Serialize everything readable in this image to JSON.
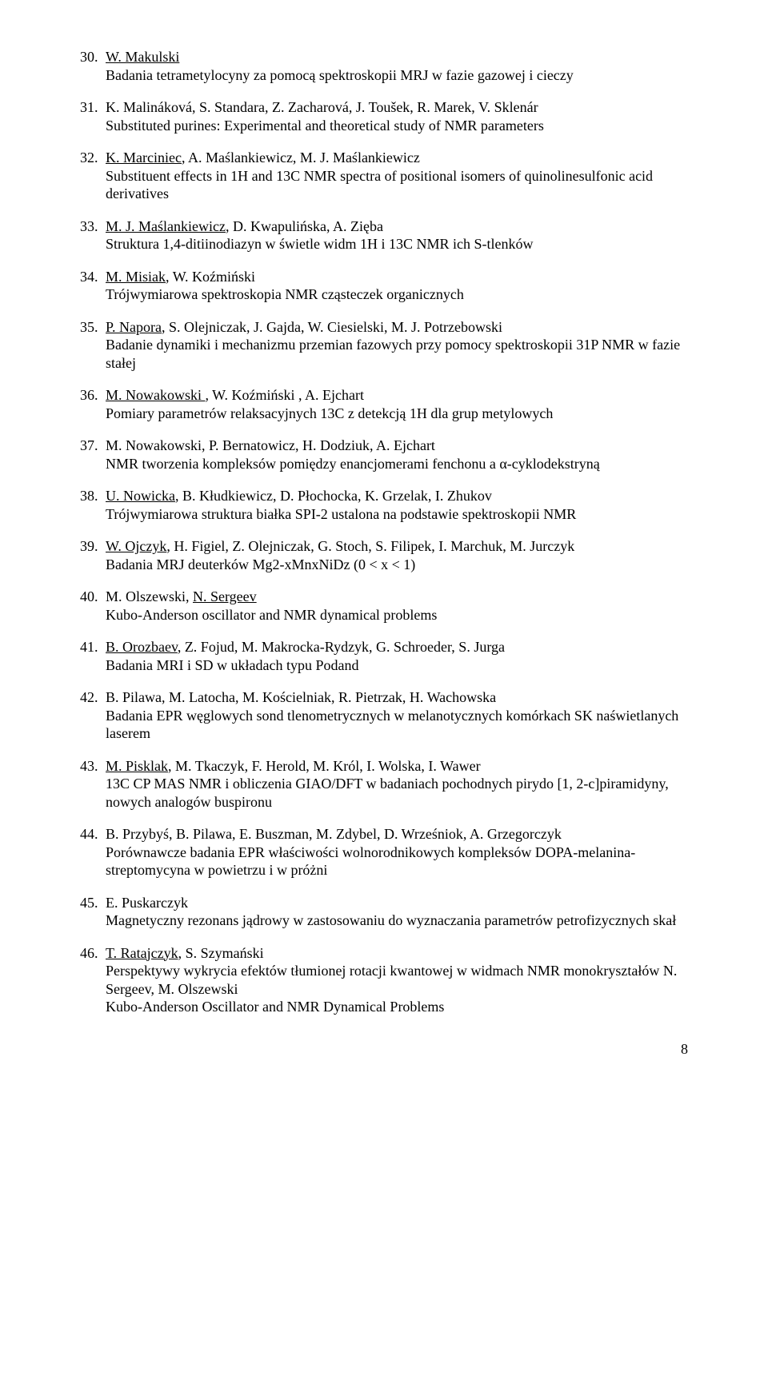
{
  "entries": [
    {
      "num": "30.",
      "authors_html": "<span class='u'>W. Makulski</span>",
      "title_lines": [
        "Badania tetrametylocyny za pomocą spektroskopii MRJ w fazie gazowej i cieczy"
      ]
    },
    {
      "num": "31.",
      "authors_html": "K. Malináková, S. Standara, Z. Zacharová, J. Toušek, R. Marek, V. Sklenár",
      "title_lines": [
        "Substituted purines: Experimental and theoretical study of NMR parameters"
      ]
    },
    {
      "num": "32.",
      "authors_html": "<span class='u'>K. Marciniec</span>, A. Maślankiewicz, M. J. Maślankiewicz",
      "title_lines": [
        "Substituent effects in 1H and 13C NMR spectra of positional isomers of quinolinesulfonic acid derivatives"
      ]
    },
    {
      "num": "33.",
      "authors_html": "<span class='u'>M. J. Maślankiewicz</span>, D. Kwapulińska, A. Zięba",
      "title_lines": [
        "Struktura 1,4-ditiinodiazyn w świetle widm 1H i 13C NMR ich S-tlenków"
      ]
    },
    {
      "num": "34.",
      "authors_html": "<span class='u'>M. Misiak</span>, W. Koźmiński",
      "title_lines": [
        "Trójwymiarowa spektroskopia NMR cząsteczek organicznych"
      ]
    },
    {
      "num": "35.",
      "authors_html": "<span class='u'>P. Napora</span>, S. Olejniczak, J. Gajda, W. Ciesielski, M. J. Potrzebowski",
      "title_lines": [
        "Badanie dynamiki i mechanizmu przemian fazowych przy pomocy spektroskopii 31P NMR w fazie stałej"
      ]
    },
    {
      "num": "36.",
      "authors_html": "<span class='u'>M. Nowakowski </span>, W. Koźmiński , A. Ejchart",
      "title_lines": [
        "Pomiary parametrów relaksacyjnych 13C z detekcją 1H dla grup metylowych"
      ]
    },
    {
      "num": "37.",
      "authors_html": "M. Nowakowski, P. Bernatowicz, H. Dodziuk, A. Ejchart",
      "title_lines": [
        "NMR tworzenia kompleksów pomiędzy enancjomerami fenchonu a α-cyklodekstryną"
      ]
    },
    {
      "num": "38.",
      "authors_html": "<span class='u'>U. Nowicka</span>, B. Kłudkiewicz, D. Płochocka, K. Grzelak, I. Zhukov",
      "title_lines": [
        "Trójwymiarowa struktura białka SPI-2 ustalona na podstawie spektroskopii NMR"
      ]
    },
    {
      "num": "39.",
      "authors_html": "<span class='u'>W. Ojczyk</span>, H. Figiel, Z. Olejniczak, G. Stoch, S. Filipek, I. Marchuk, M. Jurczyk",
      "title_lines": [
        "Badania MRJ deuterków Mg2-xMnxNiDz (0 < x < 1)"
      ]
    },
    {
      "num": "40.",
      "authors_html": "M. Olszewski, <span class='u'>N. Sergeev</span>",
      "title_lines": [
        "Kubo-Anderson oscillator and NMR dynamical problems"
      ]
    },
    {
      "num": "41.",
      "authors_html": "<span class='u'>B. Orozbaev</span>, Z. Fojud, M. Makrocka-Rydzyk, G. Schroeder, S. Jurga",
      "title_lines": [
        "Badania MRI i SD w układach typu Podand"
      ]
    },
    {
      "num": "42.",
      "authors_html": "B. Pilawa, M. Latocha, M. Kościelniak, R. Pietrzak, H. Wachowska",
      "title_lines": [
        "Badania EPR węglowych sond tlenometrycznych w melanotycznych komórkach SK naświetlanych laserem"
      ]
    },
    {
      "num": "43.",
      "authors_html": "<span class='u'>M. Pisklak</span>, M. Tkaczyk, F. Herold, M. Król, I. Wolska, I. Wawer",
      "title_lines": [
        "13C CP MAS NMR i obliczenia GIAO/DFT w badaniach pochodnych pirydo [1, 2-c]piramidyny, nowych analogów buspironu"
      ]
    },
    {
      "num": "44.",
      "authors_html": "B. Przybyś, B. Pilawa, E. Buszman, M. Zdybel, D. Wrześniok, A. Grzegorczyk",
      "title_lines": [
        "Porównawcze badania EPR właściwości wolnorodnikowych kompleksów DOPA-melanina-streptomycyna w powietrzu i w próżni"
      ]
    },
    {
      "num": "45.",
      "authors_html": "E. Puskarczyk",
      "title_lines": [
        "Magnetyczny rezonans jądrowy w zastosowaniu do wyznaczania parametrów petrofizycznych skał"
      ]
    },
    {
      "num": "46.",
      "authors_html": "<span class='u'>T. Ratajczyk</span>, S. Szymański",
      "title_lines": [
        "Perspektywy wykrycia efektów tłumionej rotacji kwantowej w widmach NMR monokryształów N. Sergeev, M. Olszewski",
        "Kubo-Anderson Oscillator and NMR Dynamical Problems"
      ]
    }
  ],
  "page_number": "8"
}
